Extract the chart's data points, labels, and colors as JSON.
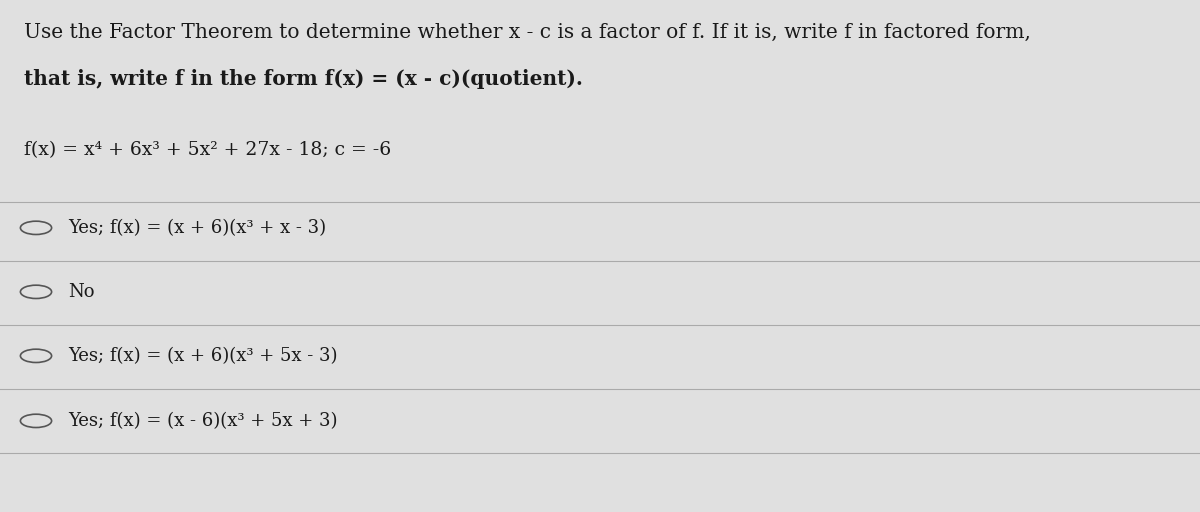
{
  "background_color": "#e0e0e0",
  "panel_color": "#ebebeb",
  "title_line1": "Use the Factor Theorem to determine whether x - c is a factor of f. If it is, write f in factored form,",
  "title_line2": "that is, write f in the form f(x) = (x - c)(quotient).",
  "question": "f(x) = x⁴ + 6x³ + 5x² + 27x - 18; c = -6",
  "options": [
    "Yes; f(x) = (x + 6)(x³ + x - 3)",
    "No",
    "Yes; f(x) = (x + 6)(x³ + 5x - 3)",
    "Yes; f(x) = (x - 6)(x³ + 5x + 3)"
  ],
  "text_color": "#1a1a1a",
  "line_color": "#aaaaaa",
  "circle_color": "#555555",
  "title_fontsize": 14.5,
  "question_fontsize": 13.5,
  "option_fontsize": 13.0
}
